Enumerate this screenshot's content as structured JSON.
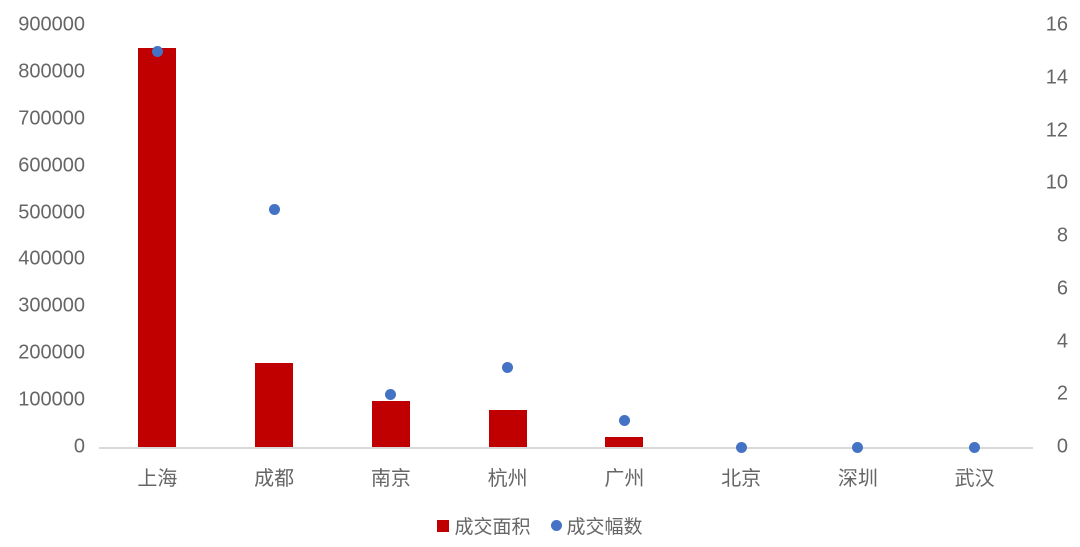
{
  "chart_data": {
    "type": "combo",
    "title": "",
    "categories": [
      "上海",
      "成都",
      "南京",
      "杭州",
      "广州",
      "北京",
      "深圳",
      "武汉"
    ],
    "series": [
      {
        "name": "成交面积",
        "type": "bar",
        "axis": "left",
        "color": "#c00000",
        "values": [
          850000,
          180000,
          98000,
          79000,
          22000,
          0,
          0,
          0
        ]
      },
      {
        "name": "成交幅数",
        "type": "scatter",
        "axis": "right",
        "color": "#4472c4",
        "values": [
          15,
          9,
          2,
          3,
          1,
          0,
          0,
          0
        ]
      }
    ],
    "left_axis": {
      "min": 0,
      "max": 900000,
      "step": 100000,
      "tick_labels": [
        "900000",
        "800000",
        "700000",
        "600000",
        "500000",
        "400000",
        "300000",
        "200000",
        "100000",
        "0"
      ]
    },
    "right_axis": {
      "min": 0,
      "max": 16,
      "step": 2,
      "tick_labels": [
        "16",
        "14",
        "12",
        "10",
        "8",
        "6",
        "4",
        "2",
        "0"
      ]
    },
    "legend": {
      "position": "bottom",
      "items": [
        {
          "label": "成交面积",
          "marker": "square",
          "color": "#c00000"
        },
        {
          "label": "成交幅数",
          "marker": "circle",
          "color": "#4472c4"
        }
      ]
    },
    "grid": false,
    "axis_line_color": "#d9d9d9",
    "text_color": "#666666"
  }
}
